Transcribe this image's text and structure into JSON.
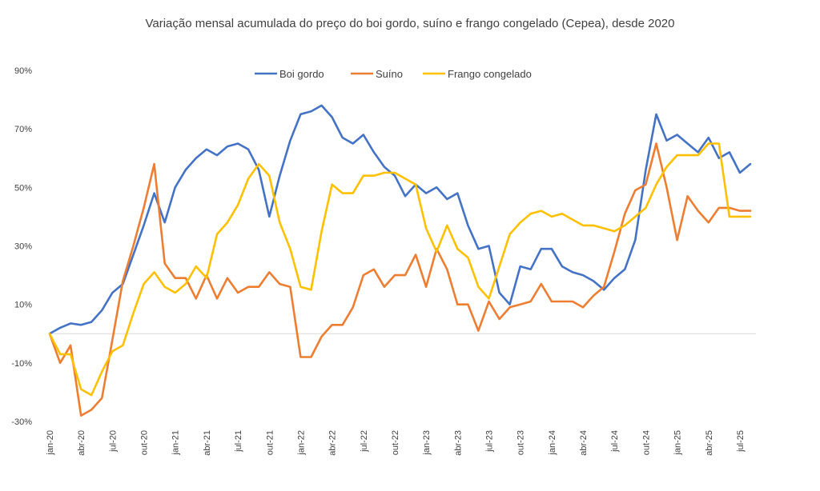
{
  "chart_data": {
    "type": "line",
    "title": "Variação mensal acumulada do preço do boi gordo, suíno e frango congelado (Cepea), desde 2020",
    "xlabel": "",
    "ylabel": "",
    "ylim": [
      -30,
      90
    ],
    "yticks": [
      90,
      70,
      50,
      30,
      10,
      -10,
      -30
    ],
    "ytick_labels": [
      "90%",
      "70%",
      "50%",
      "30%",
      "10%",
      "-10%",
      "-30%"
    ],
    "xtick_labels": [
      "jan-20",
      "abr-20",
      "jul-20",
      "out-20",
      "jan-21",
      "abr-21",
      "jul-21",
      "out-21",
      "jan-22",
      "abr-22",
      "jul-22",
      "out-22",
      "jan-23",
      "abr-23",
      "jul-23",
      "out-23",
      "jan-24",
      "abr-24",
      "jul-24",
      "out-24",
      "jan-25",
      "abr-25",
      "jul-25"
    ],
    "legend_position": "top-center",
    "grid": false,
    "series": [
      {
        "name": "Boi gordo",
        "color": "#4472C4",
        "values": [
          0,
          2,
          3.5,
          3,
          4,
          8,
          14,
          17,
          27,
          37,
          48,
          38,
          50,
          56,
          60,
          63,
          61,
          64,
          65,
          63,
          56,
          40,
          54,
          66,
          75,
          76,
          78,
          74,
          67,
          65,
          68,
          62,
          57,
          54,
          47,
          51,
          48,
          50,
          46,
          48,
          37,
          29,
          30,
          14,
          10,
          23,
          22,
          29,
          29,
          23,
          21,
          20,
          18,
          15,
          19,
          22,
          32,
          56,
          75,
          66,
          68,
          65,
          62,
          67,
          60,
          62,
          55,
          58
        ]
      },
      {
        "name": "Suíno",
        "color": "#ED7D31",
        "values": [
          0,
          -10,
          -4,
          -28,
          -26,
          -22,
          -2,
          18,
          30,
          43,
          58,
          24,
          19,
          19,
          12,
          20,
          12,
          19,
          14,
          16,
          16,
          21,
          17,
          16,
          -8,
          -8,
          -1,
          3,
          3,
          9,
          20,
          22,
          16,
          20,
          20,
          27,
          16,
          29,
          22,
          10,
          10,
          1,
          11,
          5,
          9,
          10,
          11,
          17,
          11,
          11,
          11,
          9,
          13,
          16,
          28,
          41,
          49,
          51,
          65,
          50,
          32,
          47,
          42,
          38,
          43,
          43,
          42,
          42
        ]
      },
      {
        "name": "Frango congelado",
        "color": "#FFC000",
        "values": [
          0,
          -7,
          -7,
          -19,
          -21,
          -13,
          -6,
          -4,
          7,
          17,
          21,
          16,
          14,
          17,
          23,
          19,
          34,
          38,
          44,
          53,
          58,
          54,
          38,
          29,
          16,
          15,
          35,
          51,
          48,
          48,
          54,
          54,
          55,
          55,
          53,
          51,
          36,
          28,
          37,
          29,
          26,
          16,
          12,
          23,
          34,
          38,
          41,
          42,
          40,
          41,
          39,
          37,
          37,
          36,
          35,
          37,
          40,
          43,
          51,
          57,
          61,
          61,
          61,
          65,
          65,
          40,
          40,
          40
        ]
      }
    ]
  }
}
